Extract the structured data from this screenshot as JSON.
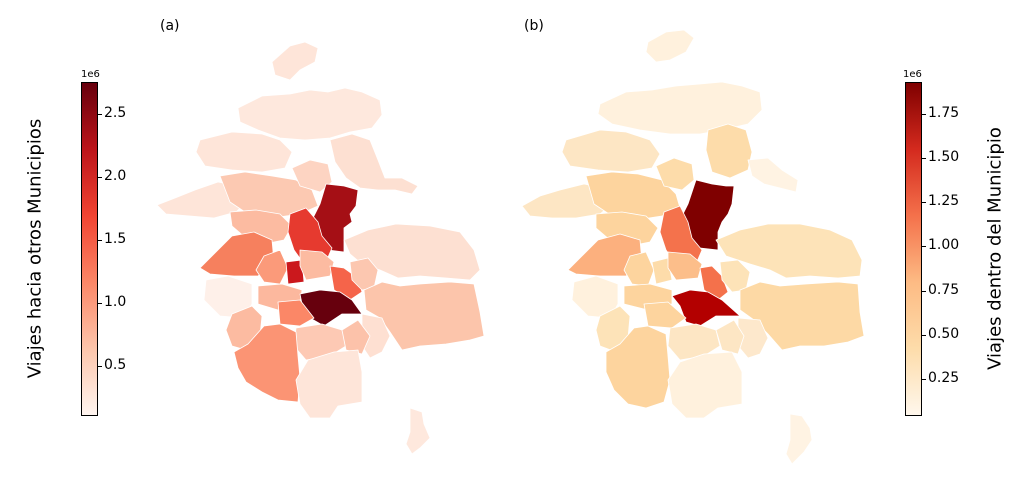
{
  "panels": [
    {
      "label": "(a)",
      "colorbar": {
        "label": "Viajes hacia otros Municipios",
        "exponent": "1e6",
        "ticks": [
          "2.5",
          "2.0",
          "1.5",
          "1.0",
          "0.5"
        ],
        "tick_values": [
          2.5,
          2.0,
          1.5,
          1.0,
          0.5
        ],
        "range": [
          0.1,
          2.75
        ],
        "colormap": "Reds"
      }
    },
    {
      "label": "(b)",
      "colorbar": {
        "label": "Viajes dentro del Municipio",
        "exponent": "1e6",
        "ticks": [
          "1.75",
          "1.50",
          "1.25",
          "1.00",
          "0.75",
          "0.50",
          "0.25"
        ],
        "tick_values": [
          1.75,
          1.5,
          1.25,
          1.0,
          0.75,
          0.5,
          0.25
        ],
        "range": [
          0.04,
          1.93
        ],
        "colormap": "OrRd"
      }
    }
  ],
  "colors": {
    "reds_low": "#fff5f0",
    "reds_high": "#67000d",
    "orrd_low": "#fff7ec",
    "orrd_high": "#7f0000"
  }
}
